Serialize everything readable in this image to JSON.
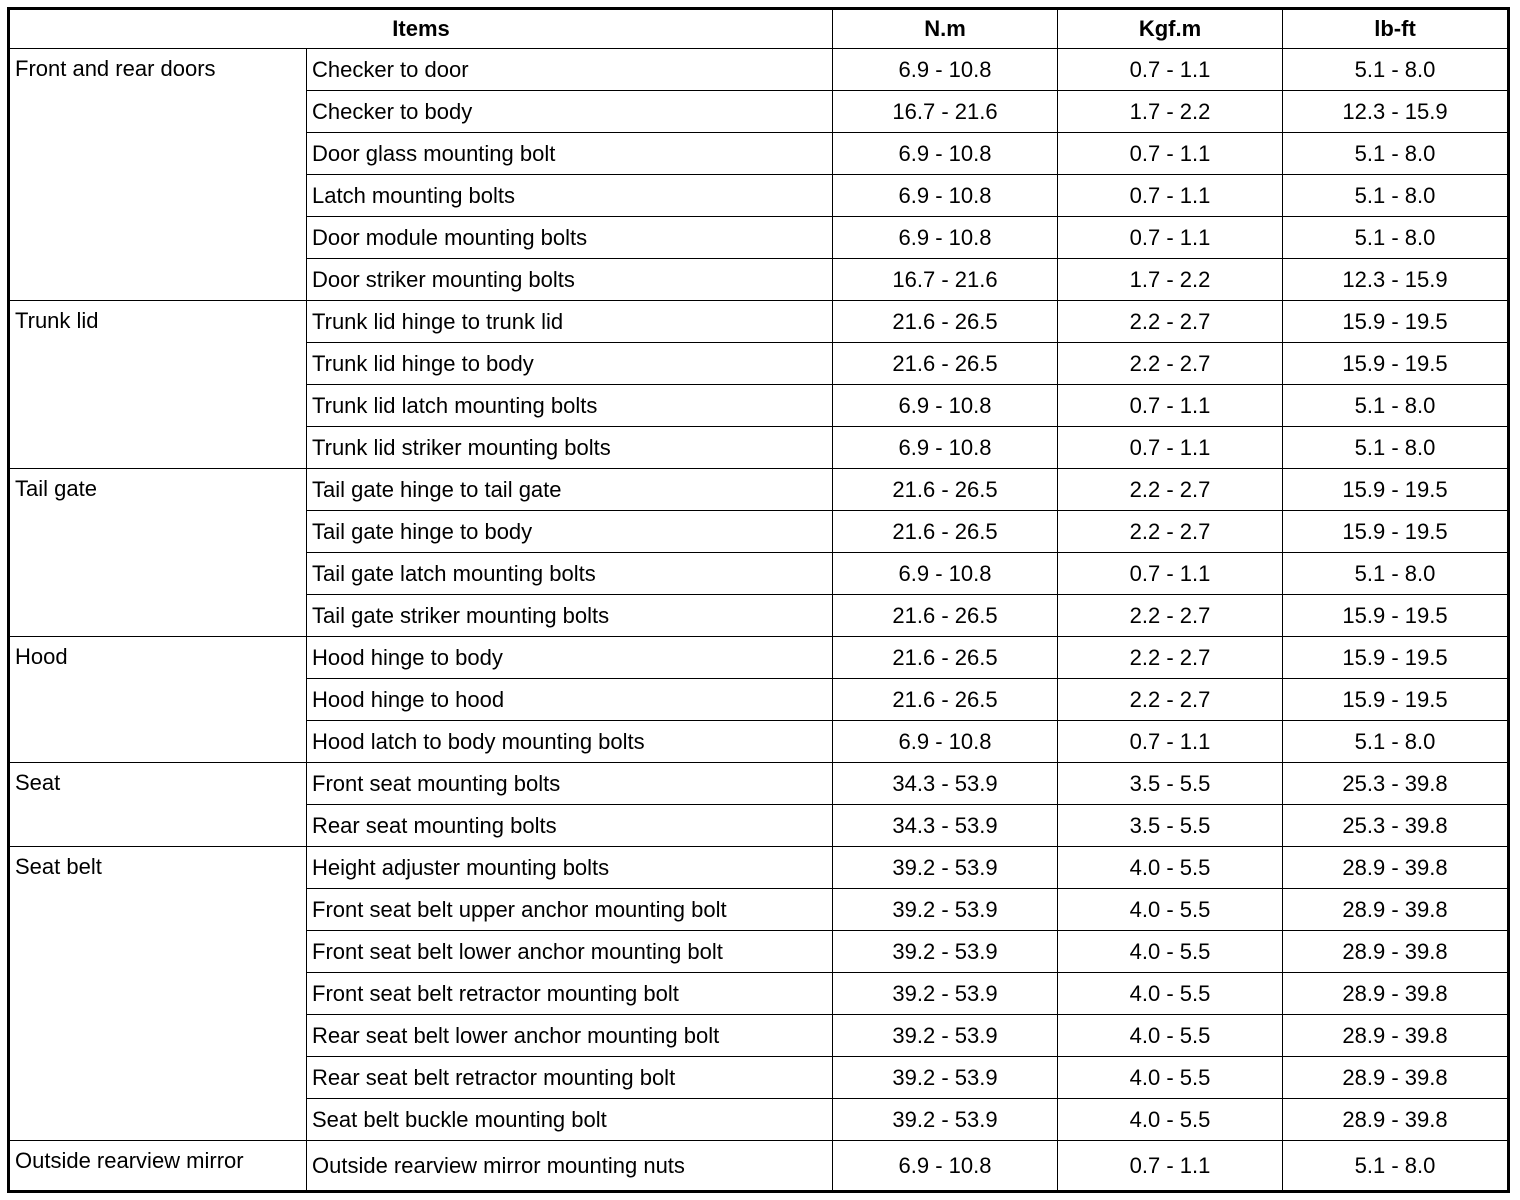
{
  "table": {
    "header": [
      "Items",
      "N.m",
      "Kgf.m",
      "lb-ft"
    ],
    "groups": [
      {
        "name": "Front and rear doors",
        "rows": [
          [
            "Checker to door",
            "6.9 - 10.8",
            "0.7 - 1.1",
            "5.1 - 8.0"
          ],
          [
            "Checker to body",
            "16.7 - 21.6",
            "1.7 - 2.2",
            "12.3 - 15.9"
          ],
          [
            "Door glass mounting bolt",
            "6.9 - 10.8",
            "0.7 - 1.1",
            "5.1 - 8.0"
          ],
          [
            "Latch mounting bolts",
            "6.9 - 10.8",
            "0.7 - 1.1",
            "5.1 - 8.0"
          ],
          [
            "Door module mounting bolts",
            "6.9 - 10.8",
            "0.7 - 1.1",
            "5.1 - 8.0"
          ],
          [
            "Door striker mounting bolts",
            "16.7 - 21.6",
            "1.7 - 2.2",
            "12.3 - 15.9"
          ]
        ]
      },
      {
        "name": "Trunk lid",
        "rows": [
          [
            "Trunk lid hinge to trunk lid",
            "21.6 - 26.5",
            "2.2 - 2.7",
            "15.9 - 19.5"
          ],
          [
            "Trunk lid hinge to body",
            "21.6 - 26.5",
            "2.2 - 2.7",
            "15.9 - 19.5"
          ],
          [
            "Trunk lid latch mounting bolts",
            "6.9 - 10.8",
            "0.7 - 1.1",
            "5.1 - 8.0"
          ],
          [
            "Trunk lid striker mounting bolts",
            "6.9 - 10.8",
            "0.7 - 1.1",
            "5.1 - 8.0"
          ]
        ]
      },
      {
        "name": "Tail gate",
        "rows": [
          [
            "Tail gate hinge to tail gate",
            "21.6 - 26.5",
            "2.2 - 2.7",
            "15.9 - 19.5"
          ],
          [
            "Tail gate hinge to body",
            "21.6 - 26.5",
            "2.2 - 2.7",
            "15.9 - 19.5"
          ],
          [
            "Tail gate latch mounting bolts",
            "6.9 - 10.8",
            "0.7 - 1.1",
            "5.1 - 8.0"
          ],
          [
            "Tail gate striker mounting bolts",
            "21.6 - 26.5",
            "2.2 - 2.7",
            "15.9 - 19.5"
          ]
        ]
      },
      {
        "name": "Hood",
        "rows": [
          [
            "Hood hinge to body",
            "21.6 - 26.5",
            "2.2 - 2.7",
            "15.9 - 19.5"
          ],
          [
            "Hood hinge to hood",
            "21.6 - 26.5",
            "2.2 - 2.7",
            "15.9 - 19.5"
          ],
          [
            "Hood latch to body mounting bolts",
            "6.9 - 10.8",
            "0.7 - 1.1",
            "5.1 - 8.0"
          ]
        ]
      },
      {
        "name": "Seat",
        "rows": [
          [
            "Front seat mounting bolts",
            "34.3 - 53.9",
            "3.5 - 5.5",
            "25.3 - 39.8"
          ],
          [
            "Rear seat mounting bolts",
            "34.3 - 53.9",
            "3.5 - 5.5",
            "25.3 - 39.8"
          ]
        ]
      },
      {
        "name": "Seat belt",
        "rows": [
          [
            "Height adjuster mounting bolts",
            "39.2 - 53.9",
            "4.0 - 5.5",
            "28.9 - 39.8"
          ],
          [
            "Front seat belt upper anchor mounting bolt",
            "39.2 - 53.9",
            "4.0 - 5.5",
            "28.9 - 39.8"
          ],
          [
            "Front seat belt lower anchor mounting bolt",
            "39.2 - 53.9",
            "4.0 - 5.5",
            "28.9 - 39.8"
          ],
          [
            "Front seat belt retractor mounting bolt",
            "39.2 - 53.9",
            "4.0 - 5.5",
            "28.9 - 39.8"
          ],
          [
            "Rear seat belt lower anchor mounting bolt",
            "39.2 - 53.9",
            "4.0 - 5.5",
            "28.9 - 39.8"
          ],
          [
            "Rear seat belt retractor mounting bolt",
            "39.2 - 53.9",
            "4.0 - 5.5",
            "28.9 - 39.8"
          ],
          [
            "Seat belt buckle mounting bolt",
            "39.2 - 53.9",
            "4.0 - 5.5",
            "28.9 - 39.8"
          ]
        ]
      },
      {
        "name": "Outside rearview mirror",
        "rows": [
          [
            "Outside rearview mirror mounting nuts",
            "6.9 - 10.8",
            "0.7 - 1.1",
            "5.1 - 8.0"
          ]
        ]
      }
    ]
  }
}
